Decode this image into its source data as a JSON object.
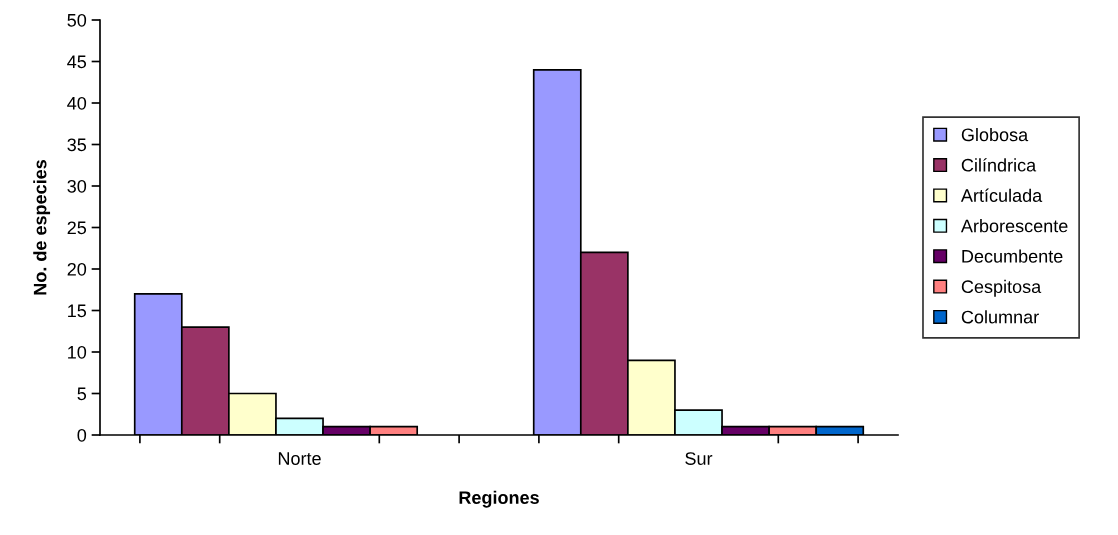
{
  "chart_data": {
    "type": "bar",
    "xlabel": "Regiones",
    "ylabel": "No. de especies",
    "categories": [
      "Norte",
      "Sur"
    ],
    "series": [
      {
        "name": "Globosa",
        "color": "#9999ff",
        "values": [
          17,
          44
        ]
      },
      {
        "name": "Cilíndrica",
        "color": "#993366",
        "values": [
          13,
          22
        ]
      },
      {
        "name": "Artículada",
        "color": "#ffffcc",
        "values": [
          5,
          9
        ]
      },
      {
        "name": "Arborescente",
        "color": "#ccffff",
        "values": [
          2,
          3
        ]
      },
      {
        "name": "Decumbente",
        "color": "#660066",
        "values": [
          1,
          1
        ]
      },
      {
        "name": "Cespitosa",
        "color": "#ff8080",
        "values": [
          1,
          1
        ]
      },
      {
        "name": "Columnar",
        "color": "#0066cc",
        "values": [
          null,
          1
        ]
      }
    ],
    "ylim": [
      0,
      50
    ],
    "yticks": [
      0,
      5,
      10,
      15,
      20,
      25,
      30,
      35,
      40,
      45,
      50
    ],
    "grid": false,
    "legend": "right"
  }
}
